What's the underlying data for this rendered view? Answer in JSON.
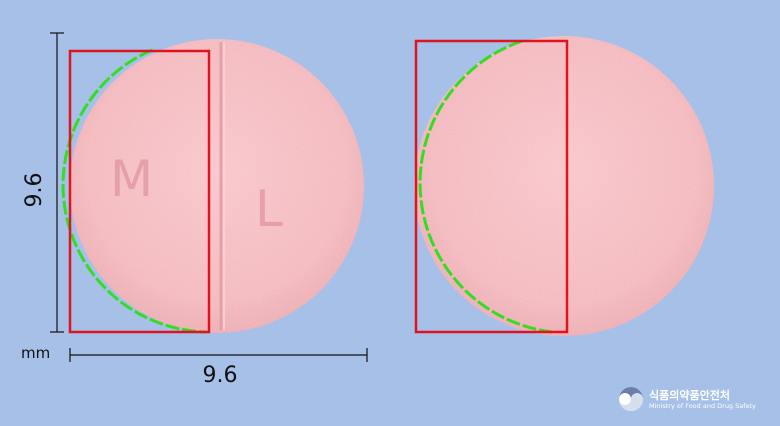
{
  "measurement": {
    "height_label": "9.6",
    "width_label": "9.6",
    "unit": "mm"
  },
  "tablet": {
    "imprint_left": "M",
    "imprint_right": "L",
    "color": "#f3b7bd"
  },
  "logo": {
    "korean": "식품의약품안전처",
    "english": "Ministry of Food and Drug Safety"
  },
  "colors": {
    "background": "#a6c0e8",
    "box": "#e0141e",
    "outline": "#33dd22"
  }
}
